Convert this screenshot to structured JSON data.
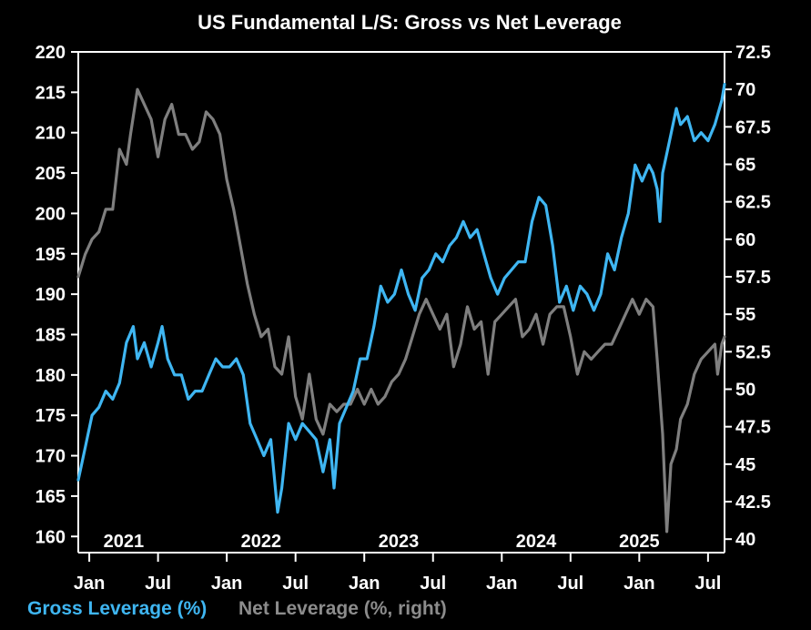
{
  "colors": {
    "background": "#000000",
    "gross": "#3fb6f2",
    "net": "#7f7f7f",
    "axis": "#ffffff"
  },
  "chart_data": {
    "type": "line",
    "title": "US Fundamental L/S: Gross vs Net Leverage",
    "x_range": [
      2020.92,
      2025.62
    ],
    "month_ticks": [
      {
        "label": "Jan",
        "x": 2021.0
      },
      {
        "label": "Jul",
        "x": 2021.5
      },
      {
        "label": "Jan",
        "x": 2022.0
      },
      {
        "label": "Jul",
        "x": 2022.5
      },
      {
        "label": "Jan",
        "x": 2023.0
      },
      {
        "label": "Jul",
        "x": 2023.5
      },
      {
        "label": "Jan",
        "x": 2024.0
      },
      {
        "label": "Jul",
        "x": 2024.5
      },
      {
        "label": "Jan",
        "x": 2025.0
      },
      {
        "label": "Jul",
        "x": 2025.5
      }
    ],
    "year_labels": [
      {
        "label": "2021",
        "x": 2021.25
      },
      {
        "label": "2022",
        "x": 2022.25
      },
      {
        "label": "2023",
        "x": 2023.25
      },
      {
        "label": "2024",
        "x": 2024.25
      },
      {
        "label": "2025",
        "x": 2025.0
      }
    ],
    "left_axis": {
      "range": [
        158,
        220
      ],
      "ticks": [
        160,
        165,
        170,
        175,
        180,
        185,
        190,
        195,
        200,
        205,
        210,
        215,
        220
      ]
    },
    "right_axis": {
      "range": [
        39.1,
        72.5
      ],
      "ticks": [
        40,
        42.5,
        45,
        47.5,
        50,
        52.5,
        55,
        57.5,
        60,
        62.5,
        65,
        67.5,
        70,
        72.5
      ]
    },
    "series": [
      {
        "name": "Gross Leverage (%)",
        "axis": "left",
        "color": "#3fb6f2",
        "points": [
          [
            2020.92,
            167
          ],
          [
            2020.97,
            171
          ],
          [
            2021.02,
            175
          ],
          [
            2021.07,
            176
          ],
          [
            2021.12,
            178
          ],
          [
            2021.17,
            177
          ],
          [
            2021.22,
            179
          ],
          [
            2021.27,
            184
          ],
          [
            2021.32,
            186
          ],
          [
            2021.35,
            182
          ],
          [
            2021.4,
            184
          ],
          [
            2021.45,
            181
          ],
          [
            2021.5,
            184
          ],
          [
            2021.53,
            186
          ],
          [
            2021.57,
            182
          ],
          [
            2021.62,
            180
          ],
          [
            2021.67,
            180
          ],
          [
            2021.72,
            177
          ],
          [
            2021.77,
            178
          ],
          [
            2021.82,
            178
          ],
          [
            2021.87,
            180
          ],
          [
            2021.92,
            182
          ],
          [
            2021.97,
            181
          ],
          [
            2022.02,
            181
          ],
          [
            2022.07,
            182
          ],
          [
            2022.12,
            180
          ],
          [
            2022.17,
            174
          ],
          [
            2022.22,
            172
          ],
          [
            2022.27,
            170
          ],
          [
            2022.32,
            172
          ],
          [
            2022.37,
            163
          ],
          [
            2022.4,
            166
          ],
          [
            2022.45,
            174
          ],
          [
            2022.5,
            172
          ],
          [
            2022.55,
            174
          ],
          [
            2022.6,
            173
          ],
          [
            2022.65,
            172
          ],
          [
            2022.7,
            168
          ],
          [
            2022.75,
            172
          ],
          [
            2022.78,
            166
          ],
          [
            2022.82,
            174
          ],
          [
            2022.87,
            176
          ],
          [
            2022.92,
            178
          ],
          [
            2022.97,
            182
          ],
          [
            2023.02,
            182
          ],
          [
            2023.07,
            186
          ],
          [
            2023.12,
            191
          ],
          [
            2023.17,
            189
          ],
          [
            2023.22,
            190
          ],
          [
            2023.27,
            193
          ],
          [
            2023.32,
            190
          ],
          [
            2023.37,
            188
          ],
          [
            2023.42,
            192
          ],
          [
            2023.47,
            193
          ],
          [
            2023.52,
            195
          ],
          [
            2023.57,
            194
          ],
          [
            2023.62,
            196
          ],
          [
            2023.67,
            197
          ],
          [
            2023.72,
            199
          ],
          [
            2023.77,
            197
          ],
          [
            2023.82,
            198
          ],
          [
            2023.87,
            195
          ],
          [
            2023.92,
            192
          ],
          [
            2023.97,
            190
          ],
          [
            2024.02,
            192
          ],
          [
            2024.07,
            193
          ],
          [
            2024.12,
            194
          ],
          [
            2024.17,
            194
          ],
          [
            2024.22,
            199
          ],
          [
            2024.27,
            202
          ],
          [
            2024.32,
            201
          ],
          [
            2024.37,
            196
          ],
          [
            2024.42,
            189
          ],
          [
            2024.47,
            191
          ],
          [
            2024.52,
            188
          ],
          [
            2024.57,
            191
          ],
          [
            2024.62,
            190
          ],
          [
            2024.67,
            188
          ],
          [
            2024.72,
            190
          ],
          [
            2024.77,
            195
          ],
          [
            2024.82,
            193
          ],
          [
            2024.87,
            197
          ],
          [
            2024.92,
            200
          ],
          [
            2024.97,
            206
          ],
          [
            2025.02,
            204
          ],
          [
            2025.07,
            206
          ],
          [
            2025.1,
            205
          ],
          [
            2025.13,
            203
          ],
          [
            2025.15,
            199
          ],
          [
            2025.17,
            205
          ],
          [
            2025.22,
            209
          ],
          [
            2025.27,
            213
          ],
          [
            2025.3,
            211
          ],
          [
            2025.35,
            212
          ],
          [
            2025.4,
            209
          ],
          [
            2025.45,
            210
          ],
          [
            2025.5,
            209
          ],
          [
            2025.55,
            211
          ],
          [
            2025.6,
            214
          ],
          [
            2025.62,
            216
          ]
        ]
      },
      {
        "name": "Net Leverage (%, right)",
        "axis": "right",
        "color": "#7f7f7f",
        "points": [
          [
            2020.92,
            57.5
          ],
          [
            2020.97,
            59
          ],
          [
            2021.02,
            60
          ],
          [
            2021.07,
            60.5
          ],
          [
            2021.12,
            62
          ],
          [
            2021.17,
            62
          ],
          [
            2021.22,
            66
          ],
          [
            2021.27,
            65
          ],
          [
            2021.3,
            67
          ],
          [
            2021.35,
            70
          ],
          [
            2021.4,
            69
          ],
          [
            2021.45,
            68
          ],
          [
            2021.5,
            65.5
          ],
          [
            2021.55,
            68
          ],
          [
            2021.6,
            69
          ],
          [
            2021.65,
            67
          ],
          [
            2021.7,
            67
          ],
          [
            2021.75,
            66
          ],
          [
            2021.8,
            66.5
          ],
          [
            2021.85,
            68.5
          ],
          [
            2021.9,
            68
          ],
          [
            2021.95,
            67
          ],
          [
            2022.0,
            64
          ],
          [
            2022.05,
            62
          ],
          [
            2022.1,
            59.5
          ],
          [
            2022.15,
            57
          ],
          [
            2022.2,
            55
          ],
          [
            2022.25,
            53.5
          ],
          [
            2022.3,
            54
          ],
          [
            2022.35,
            51.5
          ],
          [
            2022.4,
            51
          ],
          [
            2022.45,
            53.5
          ],
          [
            2022.5,
            49.5
          ],
          [
            2022.55,
            48
          ],
          [
            2022.6,
            51
          ],
          [
            2022.65,
            48
          ],
          [
            2022.7,
            47
          ],
          [
            2022.75,
            49
          ],
          [
            2022.8,
            48.5
          ],
          [
            2022.85,
            49
          ],
          [
            2022.9,
            49
          ],
          [
            2022.95,
            50
          ],
          [
            2023.0,
            49
          ],
          [
            2023.05,
            50
          ],
          [
            2023.1,
            49
          ],
          [
            2023.15,
            49.5
          ],
          [
            2023.2,
            50.5
          ],
          [
            2023.25,
            51
          ],
          [
            2023.3,
            52
          ],
          [
            2023.35,
            53.5
          ],
          [
            2023.4,
            55
          ],
          [
            2023.45,
            56
          ],
          [
            2023.5,
            55
          ],
          [
            2023.55,
            54
          ],
          [
            2023.6,
            55
          ],
          [
            2023.65,
            51.5
          ],
          [
            2023.7,
            53
          ],
          [
            2023.75,
            55.5
          ],
          [
            2023.8,
            54
          ],
          [
            2023.85,
            54.5
          ],
          [
            2023.9,
            51
          ],
          [
            2023.95,
            54.5
          ],
          [
            2024.0,
            55
          ],
          [
            2024.05,
            55.5
          ],
          [
            2024.1,
            56
          ],
          [
            2024.15,
            53.5
          ],
          [
            2024.2,
            54
          ],
          [
            2024.25,
            55
          ],
          [
            2024.3,
            53
          ],
          [
            2024.35,
            55
          ],
          [
            2024.4,
            55.5
          ],
          [
            2024.45,
            55.5
          ],
          [
            2024.5,
            53.5
          ],
          [
            2024.55,
            51
          ],
          [
            2024.6,
            52.5
          ],
          [
            2024.65,
            52
          ],
          [
            2024.7,
            52.5
          ],
          [
            2024.75,
            53
          ],
          [
            2024.8,
            53
          ],
          [
            2024.85,
            54
          ],
          [
            2024.9,
            55
          ],
          [
            2024.95,
            56
          ],
          [
            2025.0,
            55
          ],
          [
            2025.05,
            56
          ],
          [
            2025.1,
            55.5
          ],
          [
            2025.13,
            52
          ],
          [
            2025.17,
            47
          ],
          [
            2025.2,
            40.5
          ],
          [
            2025.23,
            45
          ],
          [
            2025.27,
            46
          ],
          [
            2025.3,
            48
          ],
          [
            2025.35,
            49
          ],
          [
            2025.4,
            51
          ],
          [
            2025.45,
            52
          ],
          [
            2025.5,
            52.5
          ],
          [
            2025.55,
            53
          ],
          [
            2025.57,
            51
          ],
          [
            2025.6,
            53
          ],
          [
            2025.62,
            53.5
          ]
        ]
      }
    ]
  },
  "legend": {
    "gross": "Gross Leverage (%)",
    "net": "Net Leverage (%, right)"
  }
}
